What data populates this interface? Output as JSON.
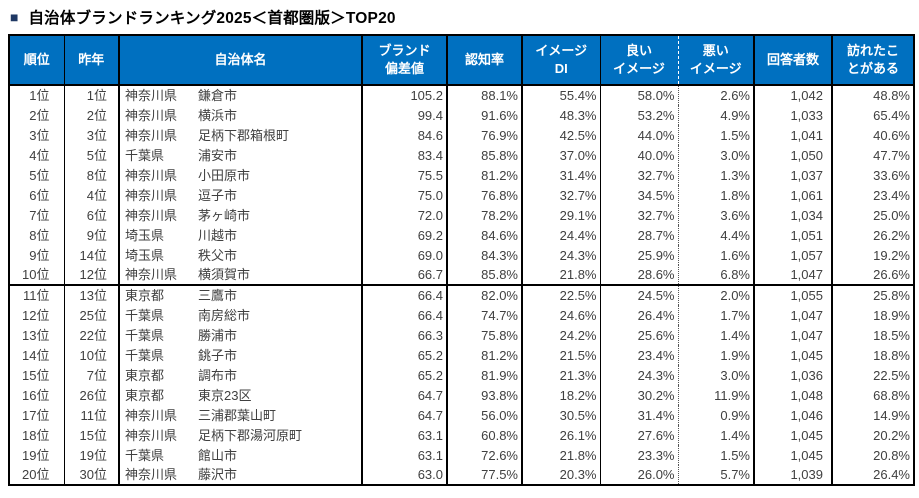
{
  "title": {
    "marker": "■",
    "text": "自治体ブランドランキング2025＜首都圏版＞TOP20"
  },
  "colors": {
    "header_bg": "#0070C0",
    "header_text": "#ffffff",
    "body_text": "#404040",
    "border": "#000000",
    "title_marker": "#1F3864"
  },
  "chart_data": {
    "type": "table",
    "title": "自治体ブランドランキング2025＜首都圏版＞TOP20",
    "columns": [
      "順位",
      "昨年",
      "自治体名",
      "ブランド\n偏差値",
      "認知率",
      "イメージ\nDI",
      "良い\nイメージ",
      "悪い\nイメージ",
      "回答者数",
      "訪れたこ\nとがある"
    ],
    "rows": [
      {
        "rank": "1位",
        "last_year": "1位",
        "prefecture": "神奈川県",
        "city": "鎌倉市",
        "brand_score": "105.2",
        "recognition_rate": "88.1%",
        "image_di": "55.4%",
        "good_image": "58.0%",
        "bad_image": "2.6%",
        "respondents": "1,042",
        "visited": "48.8%"
      },
      {
        "rank": "2位",
        "last_year": "2位",
        "prefecture": "神奈川県",
        "city": "横浜市",
        "brand_score": "99.4",
        "recognition_rate": "91.6%",
        "image_di": "48.3%",
        "good_image": "53.2%",
        "bad_image": "4.9%",
        "respondents": "1,033",
        "visited": "65.4%"
      },
      {
        "rank": "3位",
        "last_year": "3位",
        "prefecture": "神奈川県",
        "city": "足柄下郡箱根町",
        "brand_score": "84.6",
        "recognition_rate": "76.9%",
        "image_di": "42.5%",
        "good_image": "44.0%",
        "bad_image": "1.5%",
        "respondents": "1,041",
        "visited": "40.6%"
      },
      {
        "rank": "4位",
        "last_year": "5位",
        "prefecture": "千葉県",
        "city": "浦安市",
        "brand_score": "83.4",
        "recognition_rate": "85.8%",
        "image_di": "37.0%",
        "good_image": "40.0%",
        "bad_image": "3.0%",
        "respondents": "1,050",
        "visited": "47.7%"
      },
      {
        "rank": "5位",
        "last_year": "8位",
        "prefecture": "神奈川県",
        "city": "小田原市",
        "brand_score": "75.5",
        "recognition_rate": "81.2%",
        "image_di": "31.4%",
        "good_image": "32.7%",
        "bad_image": "1.3%",
        "respondents": "1,037",
        "visited": "33.6%"
      },
      {
        "rank": "6位",
        "last_year": "4位",
        "prefecture": "神奈川県",
        "city": "逗子市",
        "brand_score": "75.0",
        "recognition_rate": "76.8%",
        "image_di": "32.7%",
        "good_image": "34.5%",
        "bad_image": "1.8%",
        "respondents": "1,061",
        "visited": "23.4%"
      },
      {
        "rank": "7位",
        "last_year": "6位",
        "prefecture": "神奈川県",
        "city": "茅ヶ崎市",
        "brand_score": "72.0",
        "recognition_rate": "78.2%",
        "image_di": "29.1%",
        "good_image": "32.7%",
        "bad_image": "3.6%",
        "respondents": "1,034",
        "visited": "25.0%"
      },
      {
        "rank": "8位",
        "last_year": "9位",
        "prefecture": "埼玉県",
        "city": "川越市",
        "brand_score": "69.2",
        "recognition_rate": "84.6%",
        "image_di": "24.4%",
        "good_image": "28.7%",
        "bad_image": "4.4%",
        "respondents": "1,051",
        "visited": "26.2%"
      },
      {
        "rank": "9位",
        "last_year": "14位",
        "prefecture": "埼玉県",
        "city": "秩父市",
        "brand_score": "69.0",
        "recognition_rate": "84.3%",
        "image_di": "24.3%",
        "good_image": "25.9%",
        "bad_image": "1.6%",
        "respondents": "1,057",
        "visited": "19.2%"
      },
      {
        "rank": "10位",
        "last_year": "12位",
        "prefecture": "神奈川県",
        "city": "横須賀市",
        "brand_score": "66.7",
        "recognition_rate": "85.8%",
        "image_di": "21.8%",
        "good_image": "28.6%",
        "bad_image": "6.8%",
        "respondents": "1,047",
        "visited": "26.6%"
      },
      {
        "rank": "11位",
        "last_year": "13位",
        "prefecture": "東京都",
        "city": "三鷹市",
        "brand_score": "66.4",
        "recognition_rate": "82.0%",
        "image_di": "22.5%",
        "good_image": "24.5%",
        "bad_image": "2.0%",
        "respondents": "1,055",
        "visited": "25.8%"
      },
      {
        "rank": "12位",
        "last_year": "25位",
        "prefecture": "千葉県",
        "city": "南房総市",
        "brand_score": "66.4",
        "recognition_rate": "74.7%",
        "image_di": "24.6%",
        "good_image": "26.4%",
        "bad_image": "1.7%",
        "respondents": "1,047",
        "visited": "18.9%"
      },
      {
        "rank": "13位",
        "last_year": "22位",
        "prefecture": "千葉県",
        "city": "勝浦市",
        "brand_score": "66.3",
        "recognition_rate": "75.8%",
        "image_di": "24.2%",
        "good_image": "25.6%",
        "bad_image": "1.4%",
        "respondents": "1,047",
        "visited": "18.5%"
      },
      {
        "rank": "14位",
        "last_year": "10位",
        "prefecture": "千葉県",
        "city": "銚子市",
        "brand_score": "65.2",
        "recognition_rate": "81.2%",
        "image_di": "21.5%",
        "good_image": "23.4%",
        "bad_image": "1.9%",
        "respondents": "1,045",
        "visited": "18.8%"
      },
      {
        "rank": "15位",
        "last_year": "7位",
        "prefecture": "東京都",
        "city": "調布市",
        "brand_score": "65.2",
        "recognition_rate": "81.9%",
        "image_di": "21.3%",
        "good_image": "24.3%",
        "bad_image": "3.0%",
        "respondents": "1,036",
        "visited": "22.5%"
      },
      {
        "rank": "16位",
        "last_year": "26位",
        "prefecture": "東京都",
        "city": "東京23区",
        "brand_score": "64.7",
        "recognition_rate": "93.8%",
        "image_di": "18.2%",
        "good_image": "30.2%",
        "bad_image": "11.9%",
        "respondents": "1,048",
        "visited": "68.8%"
      },
      {
        "rank": "17位",
        "last_year": "11位",
        "prefecture": "神奈川県",
        "city": "三浦郡葉山町",
        "brand_score": "64.7",
        "recognition_rate": "56.0%",
        "image_di": "30.5%",
        "good_image": "31.4%",
        "bad_image": "0.9%",
        "respondents": "1,046",
        "visited": "14.9%"
      },
      {
        "rank": "18位",
        "last_year": "15位",
        "prefecture": "神奈川県",
        "city": "足柄下郡湯河原町",
        "brand_score": "63.1",
        "recognition_rate": "60.8%",
        "image_di": "26.1%",
        "good_image": "27.6%",
        "bad_image": "1.4%",
        "respondents": "1,045",
        "visited": "20.2%"
      },
      {
        "rank": "19位",
        "last_year": "19位",
        "prefecture": "千葉県",
        "city": "館山市",
        "brand_score": "63.1",
        "recognition_rate": "72.6%",
        "image_di": "21.8%",
        "good_image": "23.3%",
        "bad_image": "1.5%",
        "respondents": "1,045",
        "visited": "20.8%"
      },
      {
        "rank": "20位",
        "last_year": "30位",
        "prefecture": "神奈川県",
        "city": "藤沢市",
        "brand_score": "63.0",
        "recognition_rate": "77.5%",
        "image_di": "20.3%",
        "good_image": "26.0%",
        "bad_image": "5.7%",
        "respondents": "1,039",
        "visited": "26.4%"
      }
    ]
  }
}
